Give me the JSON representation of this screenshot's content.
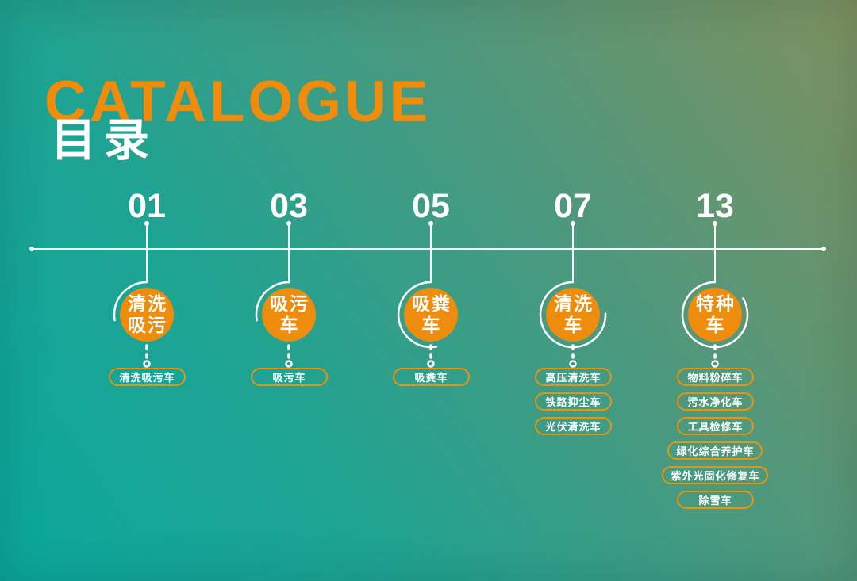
{
  "header": {
    "title_en": "CATALOGUE",
    "title_zh": "目录"
  },
  "colors": {
    "accent_orange": "#EE8C0E",
    "pill_border_orange": "#E8940D",
    "background_teal": "#0BA89D",
    "background_olive": "#80915F",
    "line_white": "#FFFFFF"
  },
  "columns": [
    {
      "page": "01",
      "circle_line1": "清洗",
      "circle_line2": "吸污",
      "items": [
        "清洗吸污车"
      ]
    },
    {
      "page": "03",
      "circle_line1": "吸污",
      "circle_line2": "车",
      "items": [
        "吸污车"
      ]
    },
    {
      "page": "05",
      "circle_line1": "吸粪",
      "circle_line2": "车",
      "items": [
        "吸粪车"
      ]
    },
    {
      "page": "07",
      "circle_line1": "清洗",
      "circle_line2": "车",
      "items": [
        "高压清洗车",
        "铁路抑尘车",
        "光伏清洗车"
      ]
    },
    {
      "page": "13",
      "circle_line1": "特种",
      "circle_line2": "车",
      "items": [
        "物料粉碎车",
        "污水净化车",
        "工具检修车",
        "绿化综合养护车",
        "紫外光固化修复车",
        "除雪车"
      ]
    }
  ]
}
